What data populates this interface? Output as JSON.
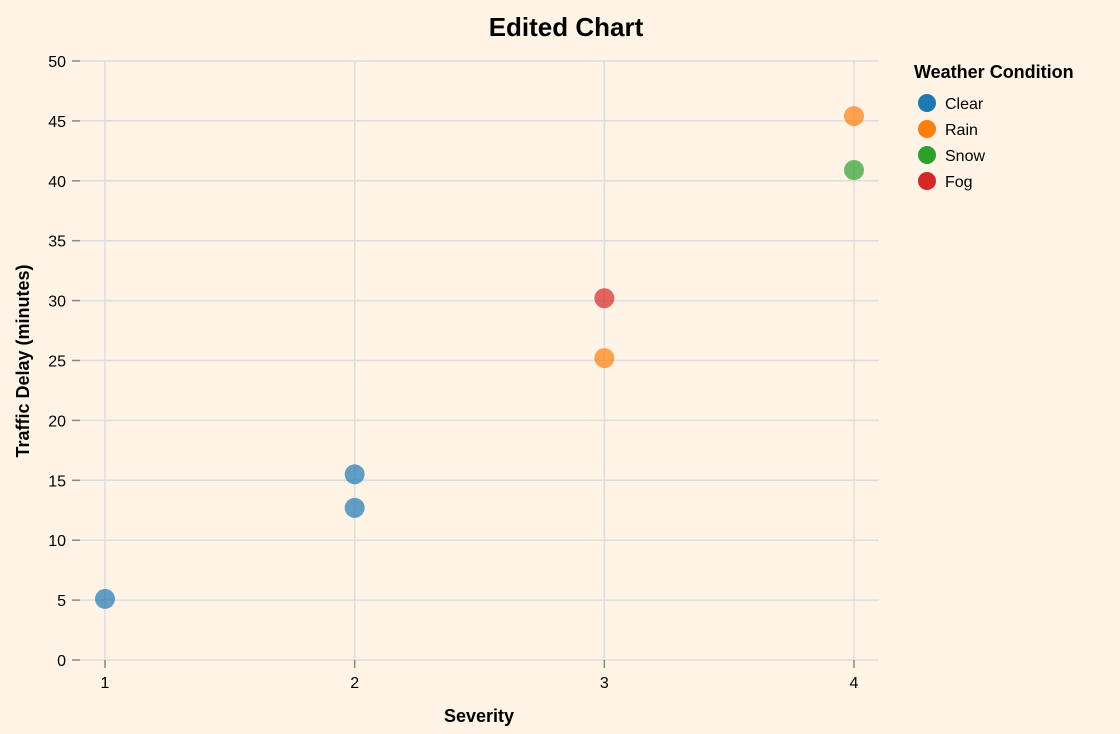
{
  "chart_data": {
    "type": "scatter",
    "title": "Edited Chart",
    "xlabel": "Severity",
    "ylabel": "Traffic Delay (minutes)",
    "xlim": [
      1,
      4
    ],
    "ylim": [
      0,
      50
    ],
    "x_ticks": [
      1,
      2,
      3,
      4
    ],
    "y_ticks": [
      0,
      5,
      10,
      15,
      20,
      25,
      30,
      35,
      40,
      45,
      50
    ],
    "grid": true,
    "legend": {
      "title": "Weather Condition",
      "placement": "top-right",
      "entries": [
        {
          "name": "Clear",
          "color": "#1f77b4"
        },
        {
          "name": "Rain",
          "color": "#ff7f0e"
        },
        {
          "name": "Snow",
          "color": "#2ca02c"
        },
        {
          "name": "Fog",
          "color": "#d62728"
        }
      ]
    },
    "points": [
      {
        "x": 1,
        "y": 5.1,
        "condition": "Clear"
      },
      {
        "x": 2,
        "y": 15.5,
        "condition": "Clear"
      },
      {
        "x": 2,
        "y": 12.7,
        "condition": "Clear"
      },
      {
        "x": 3,
        "y": 30.2,
        "condition": "Fog"
      },
      {
        "x": 3,
        "y": 25.2,
        "condition": "Rain"
      },
      {
        "x": 4,
        "y": 45.4,
        "condition": "Rain"
      },
      {
        "x": 4,
        "y": 40.9,
        "condition": "Snow"
      }
    ]
  }
}
